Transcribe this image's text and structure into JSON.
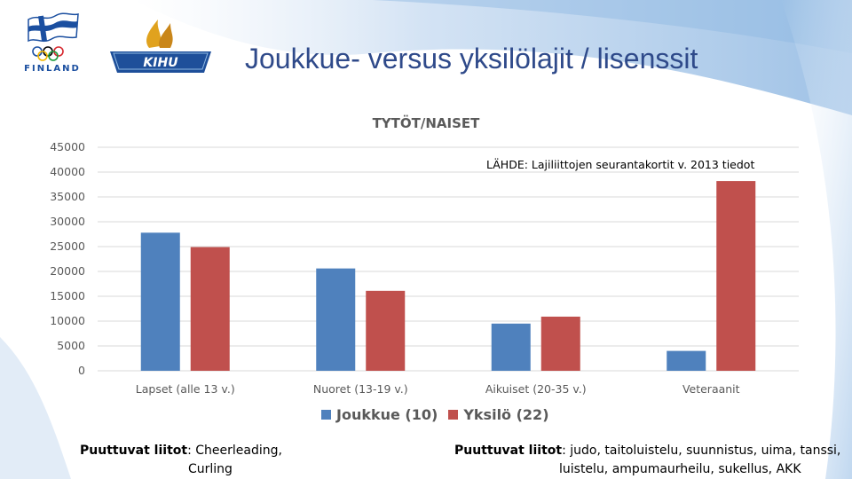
{
  "header": {
    "title": "Joukkue- versus yksilölajit / lisenssit",
    "logo_finland_text": "FINLAND",
    "logo_kihu_text": "KIHU"
  },
  "source_note": "LÄHDE: Lajiliittojen seurantakortit v. 2013 tiedot",
  "chart_data": {
    "type": "bar",
    "title": "TYTÖT/NAISET",
    "categories": [
      "Lapset (alle 13 v.)",
      "Nuoret (13-19 v.)",
      "Aikuiset (20-35 v.)",
      "Veteraanit"
    ],
    "series": [
      {
        "name": "Joukkue (10)",
        "color": "#4f81bd",
        "values": [
          27800,
          20600,
          9500,
          4000
        ]
      },
      {
        "name": "Yksilö (22)",
        "color": "#c0504d",
        "values": [
          24900,
          16100,
          10900,
          38200
        ]
      }
    ],
    "yticks": [
      "0",
      "5000",
      "10000",
      "15000",
      "20000",
      "25000",
      "30000",
      "35000",
      "40000",
      "45000"
    ],
    "ylim": [
      0,
      45000
    ],
    "grid": true,
    "legend": "bottom"
  },
  "notes": {
    "left_label": "Puuttuvat liitot",
    "left_line1": ": Cheerleading,",
    "left_line2": "Curling",
    "right_label": "Puuttuvat liitot",
    "right_line1": ": judo, taitoluistelu, suunnistus, uima, tanssi,",
    "right_line2": "luistelu, ampumaurheilu, sukellus, AKK"
  }
}
